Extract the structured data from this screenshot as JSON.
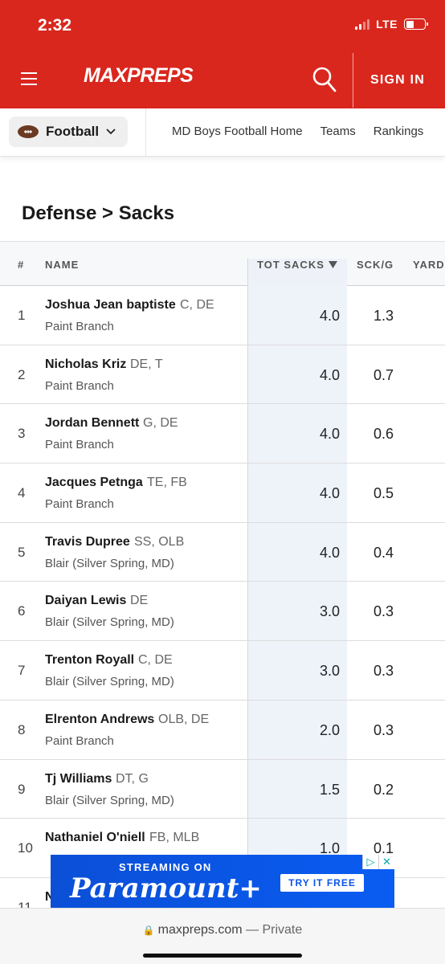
{
  "status": {
    "time": "2:32",
    "network": "LTE"
  },
  "header": {
    "logo": "MAXPREPS",
    "signin": "SIGN IN"
  },
  "subnav": {
    "sport": "Football",
    "links": [
      "MD Boys Football Home",
      "Teams",
      "Rankings"
    ]
  },
  "page_title": "Defense > Sacks",
  "table": {
    "headers": {
      "rank": "#",
      "name": "NAME",
      "tot_sacks": "TOT SACKS",
      "sck_g": "SCK/G",
      "yards": "YARD"
    },
    "rows": [
      {
        "rank": "1",
        "name": "Joshua Jean baptiste",
        "pos": "C, DE",
        "school": "Paint Branch",
        "tot": "4.0",
        "scg": "1.3"
      },
      {
        "rank": "2",
        "name": "Nicholas Kriz",
        "pos": "DE, T",
        "school": "Paint Branch",
        "tot": "4.0",
        "scg": "0.7"
      },
      {
        "rank": "3",
        "name": "Jordan Bennett",
        "pos": "G, DE",
        "school": "Paint Branch",
        "tot": "4.0",
        "scg": "0.6"
      },
      {
        "rank": "4",
        "name": "Jacques Petnga",
        "pos": "TE, FB",
        "school": "Paint Branch",
        "tot": "4.0",
        "scg": "0.5"
      },
      {
        "rank": "5",
        "name": "Travis Dupree",
        "pos": "SS, OLB",
        "school": "Blair (Silver Spring, MD)",
        "tot": "4.0",
        "scg": "0.4"
      },
      {
        "rank": "6",
        "name": "Daiyan Lewis",
        "pos": "DE",
        "school": "Blair (Silver Spring, MD)",
        "tot": "3.0",
        "scg": "0.3"
      },
      {
        "rank": "7",
        "name": "Trenton Royall",
        "pos": "C, DE",
        "school": "Blair (Silver Spring, MD)",
        "tot": "3.0",
        "scg": "0.3"
      },
      {
        "rank": "8",
        "name": "Elrenton Andrews",
        "pos": "OLB, DE",
        "school": "Paint Branch",
        "tot": "2.0",
        "scg": "0.3"
      },
      {
        "rank": "9",
        "name": "Tj Williams",
        "pos": "DT, G",
        "school": "Blair (Silver Spring, MD)",
        "tot": "1.5",
        "scg": "0.2"
      },
      {
        "rank": "10",
        "name": "Nathaniel O'niell",
        "pos": "FB, MLB",
        "school": "",
        "tot": "1.0",
        "scg": "0.1"
      },
      {
        "rank": "11",
        "name": "N",
        "pos": "",
        "school": "",
        "tot": "",
        "scg": ""
      }
    ]
  },
  "ad": {
    "line1": "STREAMING ON",
    "brand": "Paramount+",
    "cta": "TRY IT FREE"
  },
  "browser": {
    "url": "maxpreps.com",
    "mode": "— Private"
  },
  "colors": {
    "brand_red": "#d9271e",
    "ad_blue": "#0b55e8"
  }
}
